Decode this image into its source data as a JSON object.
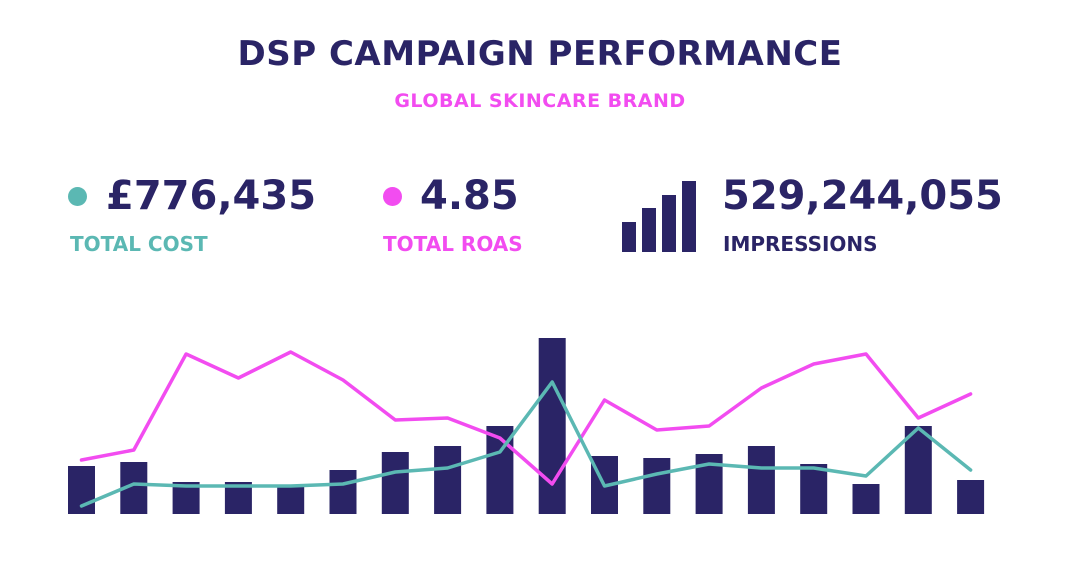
{
  "header": {
    "title": "DSP CAMPAIGN PERFORMANCE",
    "subtitle": "GLOBAL SKINCARE BRAND"
  },
  "kpis": {
    "cost": {
      "value": "£776,435",
      "label": "TOTAL COST",
      "color": "#5bb8b3",
      "icon": "dot-icon"
    },
    "roas": {
      "value": "4.85",
      "label": "TOTAL ROAS",
      "color": "#f24cf0",
      "icon": "dot-icon"
    },
    "impressions": {
      "value": "529,244,055",
      "label": "IMPRESSIONS",
      "color": "#2a2466",
      "icon": "bar-chart-icon"
    }
  },
  "colors": {
    "navy": "#2a2466",
    "teal": "#5bb8b3",
    "pink": "#f24cf0"
  },
  "chart_data": {
    "type": "bar",
    "categories": [
      "",
      "",
      "",
      "",
      "",
      "",
      "",
      "",
      "",
      "",
      "",
      "",
      "",
      "",
      "",
      "",
      "",
      ""
    ],
    "series": [
      {
        "type": "bar",
        "values": [
          24,
          26,
          16,
          16,
          14,
          22,
          31,
          34,
          44,
          88,
          29,
          28,
          30,
          34,
          25,
          15,
          44,
          17
        ]
      },
      {
        "type": "line",
        "values": [
          27,
          32,
          80,
          68,
          81,
          67,
          47,
          48,
          38,
          15,
          57,
          42,
          44,
          63,
          75,
          80,
          48,
          60
        ]
      },
      {
        "type": "line",
        "values": [
          4,
          15,
          14,
          14,
          14,
          15,
          21,
          23,
          31,
          66,
          14,
          20,
          25,
          23,
          23,
          19,
          43,
          22
        ]
      }
    ],
    "ylim": [
      0,
      100
    ],
    "grid": false,
    "legend": "none"
  }
}
